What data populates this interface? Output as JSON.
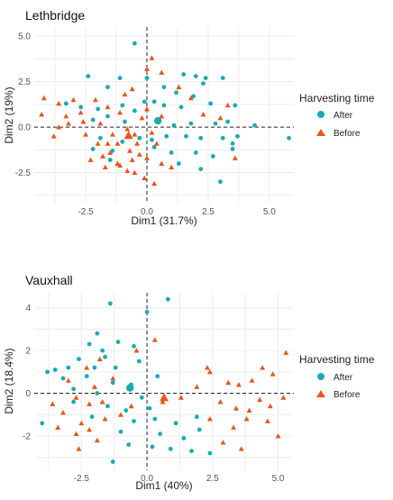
{
  "colors": {
    "after": "#1aaab4",
    "before": "#e8561b",
    "grid": "#ececec",
    "axis": "#555555",
    "dashed": "#222222"
  },
  "legend_title": "Harvesting time",
  "chart_data": [
    {
      "type": "scatter",
      "title": "Lethbridge",
      "xlabel": "Dim1 (31.7%)",
      "ylabel": "Dim2 (19%)",
      "xlim": [
        -4.6,
        6.0
      ],
      "ylim": [
        -4.2,
        5.5
      ],
      "xticks": [
        -2.5,
        0.0,
        2.5,
        5.0
      ],
      "xtick_labels": [
        "-2.5",
        "0.0",
        "2.5",
        "5.0"
      ],
      "yticks": [
        5.0,
        2.5,
        0.0,
        -2.5
      ],
      "ytick_labels": [
        "5.0",
        "2.5",
        "0.0",
        "-2.5"
      ],
      "grid": true,
      "legend_position": "right",
      "series": [
        {
          "name": "After",
          "marker": "circle",
          "color_key": "after",
          "points": [
            [
              -0.5,
              4.6
            ],
            [
              -2.4,
              2.8
            ],
            [
              -1.1,
              2.7
            ],
            [
              -1.6,
              2.2
            ],
            [
              0.0,
              2.7
            ],
            [
              0.7,
              2.2
            ],
            [
              1.5,
              2.9
            ],
            [
              2.0,
              2.8
            ],
            [
              2.4,
              2.7
            ],
            [
              3.1,
              2.7
            ],
            [
              1.2,
              1.9
            ],
            [
              1.9,
              1.7
            ],
            [
              2.3,
              2.4
            ],
            [
              -3.3,
              1.3
            ],
            [
              -2.7,
              1.1
            ],
            [
              -2.0,
              1.0
            ],
            [
              -1.0,
              1.2
            ],
            [
              -0.5,
              0.9
            ],
            [
              -0.1,
              1.4
            ],
            [
              0.3,
              1.4
            ],
            [
              0.7,
              1.2
            ],
            [
              1.4,
              1.1
            ],
            [
              2.6,
              1.3
            ],
            [
              3.6,
              1.2
            ],
            [
              -2.2,
              0.4
            ],
            [
              -1.6,
              0.6
            ],
            [
              -0.9,
              0.3
            ],
            [
              0.5,
              0.4
            ],
            [
              1.1,
              0.1
            ],
            [
              1.8,
              0.2
            ],
            [
              2.8,
              0.2
            ],
            [
              3.3,
              0.3
            ],
            [
              4.4,
              0.1
            ],
            [
              -1.9,
              -0.6
            ],
            [
              -1.0,
              -0.8
            ],
            [
              -0.3,
              -0.6
            ],
            [
              0.2,
              -0.7
            ],
            [
              0.8,
              -0.5
            ],
            [
              1.6,
              -0.5
            ],
            [
              2.2,
              -0.6
            ],
            [
              3.1,
              -0.6
            ],
            [
              3.7,
              -0.5
            ],
            [
              -2.2,
              -1.2
            ],
            [
              -1.4,
              -1.3
            ],
            [
              0.3,
              -1.1
            ],
            [
              1.0,
              -1.4
            ],
            [
              2.0,
              -1.4
            ],
            [
              2.7,
              -1.6
            ],
            [
              3.5,
              -1.2
            ],
            [
              -1.5,
              -1.8
            ],
            [
              1.3,
              -2.0
            ],
            [
              2.2,
              -2.3
            ],
            [
              3.0,
              -3.0
            ],
            [
              5.8,
              -0.6
            ],
            [
              3.5,
              -0.9
            ]
          ],
          "centroid": [
            0.45,
            0.35
          ]
        },
        {
          "name": "Before",
          "marker": "triangle",
          "color_key": "before",
          "points": [
            [
              0.2,
              3.8
            ],
            [
              0.0,
              3.2
            ],
            [
              0.6,
              3.0
            ],
            [
              -0.6,
              2.1
            ],
            [
              -0.9,
              1.8
            ],
            [
              1.3,
              2.2
            ],
            [
              1.8,
              1.6
            ],
            [
              -3.0,
              1.5
            ],
            [
              -4.2,
              1.6
            ],
            [
              -3.6,
              1.3
            ],
            [
              -2.1,
              1.5
            ],
            [
              -1.6,
              1.1
            ],
            [
              -2.7,
              0.8
            ],
            [
              -3.3,
              0.6
            ],
            [
              -2.6,
              0.3
            ],
            [
              -1.1,
              0.8
            ],
            [
              0.0,
              1.0
            ],
            [
              0.6,
              0.6
            ],
            [
              2.3,
              0.7
            ],
            [
              3.3,
              1.2
            ],
            [
              3.0,
              0.5
            ],
            [
              -4.3,
              0.7
            ],
            [
              -3.2,
              0.2
            ],
            [
              -3.6,
              0.0
            ],
            [
              -1.9,
              0.2
            ],
            [
              -0.2,
              0.5
            ],
            [
              -3.8,
              -0.5
            ],
            [
              -2.5,
              -0.4
            ],
            [
              -1.4,
              -0.4
            ],
            [
              -0.5,
              -0.4
            ],
            [
              0.2,
              -0.3
            ],
            [
              -0.8,
              -0.1
            ],
            [
              -0.4,
              -0.9
            ],
            [
              -1.6,
              -0.9
            ],
            [
              -2.0,
              -0.9
            ],
            [
              -1.2,
              -0.9
            ],
            [
              0.4,
              -0.9
            ],
            [
              -0.7,
              -1.3
            ],
            [
              -0.3,
              -1.5
            ],
            [
              -1.5,
              -1.4
            ],
            [
              -2.3,
              -1.8
            ],
            [
              -1.2,
              -2.0
            ],
            [
              -0.6,
              -1.8
            ],
            [
              0.0,
              -1.7
            ],
            [
              0.6,
              -2.0
            ],
            [
              1.0,
              -2.2
            ],
            [
              -1.7,
              -2.2
            ],
            [
              -0.8,
              -2.4
            ],
            [
              -0.1,
              -2.8
            ],
            [
              0.3,
              -3.1
            ],
            [
              -0.5,
              -2.5
            ],
            [
              -1.1,
              -2.1
            ],
            [
              -1.8,
              -1.6
            ],
            [
              3.6,
              -1.7
            ]
          ],
          "centroid": [
            -0.75,
            -0.45
          ]
        }
      ]
    },
    {
      "type": "scatter",
      "title": "Vauxhall",
      "xlabel": "Dim1 (40%)",
      "ylabel": "Dim2 (18.4%)",
      "xlim": [
        -4.3,
        5.6
      ],
      "ylim": [
        -3.6,
        4.7
      ],
      "xticks": [
        -2.5,
        0.0,
        2.5,
        5.0
      ],
      "xtick_labels": [
        "-2.5",
        "0.0",
        "2.5",
        "5.0"
      ],
      "yticks": [
        4,
        2,
        0,
        -2
      ],
      "ytick_labels": [
        "4",
        "2",
        "0",
        "-2"
      ],
      "grid": true,
      "legend_position": "right",
      "series": [
        {
          "name": "After",
          "marker": "circle",
          "color_key": "after",
          "points": [
            [
              -1.4,
              4.2
            ],
            [
              0.8,
              4.4
            ],
            [
              0.0,
              3.8
            ],
            [
              -1.9,
              2.8
            ],
            [
              -2.2,
              2.3
            ],
            [
              -1.7,
              2.0
            ],
            [
              -1.1,
              2.4
            ],
            [
              -0.5,
              2.2
            ],
            [
              -1.6,
              1.7
            ],
            [
              -2.6,
              1.6
            ],
            [
              -3.0,
              1.2
            ],
            [
              -3.5,
              1.1
            ],
            [
              -2.0,
              1.2
            ],
            [
              -1.2,
              1.2
            ],
            [
              -0.3,
              1.5
            ],
            [
              0.4,
              0.8
            ],
            [
              -3.8,
              1.0
            ],
            [
              -3.2,
              0.7
            ],
            [
              -2.3,
              0.8
            ],
            [
              -1.3,
              0.5
            ],
            [
              -0.6,
              0.4
            ],
            [
              -2.8,
              0.2
            ],
            [
              -1.9,
              0.0
            ],
            [
              -0.2,
              -0.2
            ],
            [
              -1.5,
              -0.6
            ],
            [
              -0.8,
              -0.8
            ],
            [
              0.1,
              -0.7
            ],
            [
              -2.1,
              -1.1
            ],
            [
              -0.5,
              -1.3
            ],
            [
              0.3,
              -1.2
            ],
            [
              1.1,
              -1.4
            ],
            [
              1.9,
              -1.1
            ],
            [
              -1.0,
              -1.8
            ],
            [
              0.5,
              -1.9
            ],
            [
              1.4,
              -2.1
            ],
            [
              2.0,
              -1.7
            ],
            [
              -0.7,
              -2.4
            ],
            [
              0.2,
              -2.5
            ],
            [
              0.9,
              -2.6
            ],
            [
              1.7,
              -2.7
            ],
            [
              2.4,
              -2.8
            ],
            [
              -1.3,
              -3.2
            ],
            [
              -4.0,
              -1.4
            ],
            [
              -2.8,
              -0.4
            ]
          ],
          "centroid": [
            -0.65,
            0.25
          ]
        },
        {
          "name": "Before",
          "marker": "triangle",
          "color_key": "before",
          "points": [
            [
              0.3,
              2.5
            ],
            [
              -0.4,
              2.0
            ],
            [
              -1.8,
              1.6
            ],
            [
              -2.3,
              1.2
            ],
            [
              -3.0,
              0.6
            ],
            [
              -2.0,
              0.3
            ],
            [
              -1.3,
              0.7
            ],
            [
              -2.7,
              -0.2
            ],
            [
              -2.2,
              -0.5
            ],
            [
              -1.7,
              -0.4
            ],
            [
              -0.6,
              -0.6
            ],
            [
              -3.2,
              -0.9
            ],
            [
              -2.5,
              -1.4
            ],
            [
              -1.6,
              -1.2
            ],
            [
              -1.0,
              -1.0
            ],
            [
              -3.4,
              -1.6
            ],
            [
              -2.7,
              -1.9
            ],
            [
              -2.2,
              -1.7
            ],
            [
              -1.9,
              -2.2
            ],
            [
              -2.6,
              -2.6
            ],
            [
              0.6,
              -0.4
            ],
            [
              1.3,
              -0.2
            ],
            [
              1.9,
              0.3
            ],
            [
              2.3,
              1.2
            ],
            [
              2.4,
              1.0
            ],
            [
              3.1,
              0.5
            ],
            [
              3.5,
              0.4
            ],
            [
              4.0,
              0.6
            ],
            [
              4.4,
              1.2
            ],
            [
              4.8,
              0.9
            ],
            [
              5.3,
              1.9
            ],
            [
              2.8,
              -0.4
            ],
            [
              3.4,
              -0.7
            ],
            [
              3.9,
              -0.8
            ],
            [
              4.3,
              -0.3
            ],
            [
              4.7,
              -0.6
            ],
            [
              5.2,
              -0.2
            ],
            [
              2.4,
              -1.2
            ],
            [
              3.3,
              -1.6
            ],
            [
              3.8,
              -1.2
            ],
            [
              4.6,
              -1.3
            ],
            [
              5.0,
              -2.0
            ],
            [
              3.6,
              -2.6
            ],
            [
              2.9,
              -2.3
            ],
            [
              -3.6,
              -0.5
            ]
          ],
          "centroid": [
            0.65,
            -0.2
          ]
        }
      ]
    }
  ]
}
